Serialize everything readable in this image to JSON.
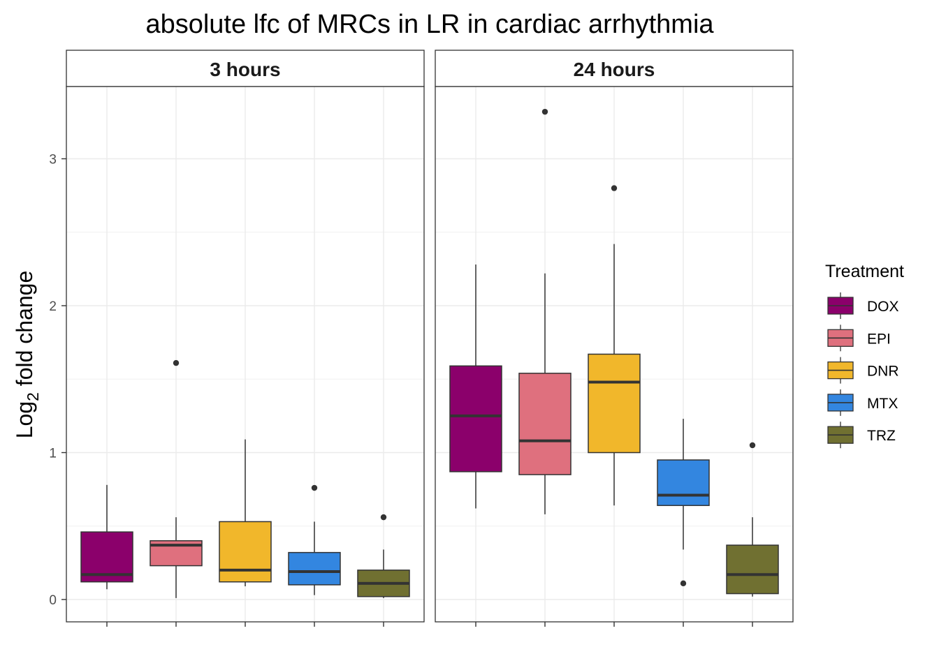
{
  "chart_data": {
    "type": "boxplot",
    "title": "absolute lfc of MRCs in LR in cardiac arrhythmia",
    "ylabel_prefix": "Log",
    "ylabel_sub": "2",
    "ylabel_suffix": " fold change",
    "xlabel": "",
    "ylim": [
      -0.15,
      3.5
    ],
    "yticks": [
      0,
      1,
      2,
      3
    ],
    "grid": true,
    "legend": {
      "title": "Treatment",
      "placement": "right",
      "items": [
        {
          "label": "DOX",
          "color": "#8B006B"
        },
        {
          "label": "EPI",
          "color": "#DF707E"
        },
        {
          "label": "DNR",
          "color": "#F1B72B"
        },
        {
          "label": "MTX",
          "color": "#3386E0"
        },
        {
          "label": "TRZ",
          "color": "#707031"
        }
      ]
    },
    "facets": [
      {
        "label": "3 hours",
        "boxes": [
          {
            "treatment": "DOX",
            "min": 0.07,
            "q1": 0.12,
            "median": 0.17,
            "q3": 0.46,
            "max": 0.78,
            "outliers": []
          },
          {
            "treatment": "EPI",
            "min": 0.01,
            "q1": 0.23,
            "median": 0.37,
            "q3": 0.4,
            "max": 0.56,
            "outliers": [
              1.61
            ]
          },
          {
            "treatment": "DNR",
            "min": 0.09,
            "q1": 0.12,
            "median": 0.2,
            "q3": 0.53,
            "max": 1.09,
            "outliers": []
          },
          {
            "treatment": "MTX",
            "min": 0.03,
            "q1": 0.1,
            "median": 0.19,
            "q3": 0.32,
            "max": 0.53,
            "outliers": [
              0.76
            ]
          },
          {
            "treatment": "TRZ",
            "min": 0.01,
            "q1": 0.02,
            "median": 0.11,
            "q3": 0.2,
            "max": 0.34,
            "outliers": [
              0.56
            ]
          }
        ]
      },
      {
        "label": "24 hours",
        "boxes": [
          {
            "treatment": "DOX",
            "min": 0.62,
            "q1": 0.87,
            "median": 1.25,
            "q3": 1.59,
            "max": 2.28,
            "outliers": []
          },
          {
            "treatment": "EPI",
            "min": 0.58,
            "q1": 0.85,
            "median": 1.08,
            "q3": 1.54,
            "max": 2.22,
            "outliers": [
              3.32
            ]
          },
          {
            "treatment": "DNR",
            "min": 0.64,
            "q1": 1.0,
            "median": 1.48,
            "q3": 1.67,
            "max": 2.42,
            "outliers": [
              2.8
            ]
          },
          {
            "treatment": "MTX",
            "min": 0.34,
            "q1": 0.64,
            "median": 0.71,
            "q3": 0.95,
            "max": 1.23,
            "outliers": [
              0.11
            ]
          },
          {
            "treatment": "TRZ",
            "min": 0.02,
            "q1": 0.04,
            "median": 0.17,
            "q3": 0.37,
            "max": 0.56,
            "outliers": [
              1.05
            ]
          }
        ]
      }
    ]
  }
}
